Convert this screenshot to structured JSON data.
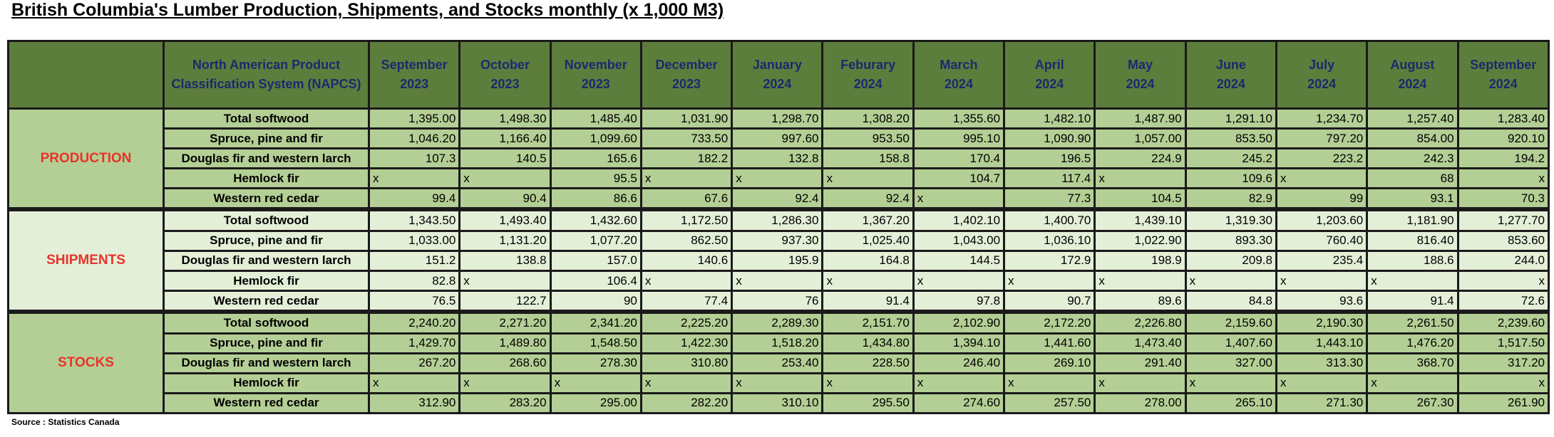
{
  "title": "British Columbia's Lumber Production, Shipments, and Stocks monthly (x 1,000 M3)",
  "header": {
    "napcs": "North American Product Classification System (NAPCS)",
    "months": [
      [
        "September",
        "2023"
      ],
      [
        "October",
        "2023"
      ],
      [
        "November",
        "2023"
      ],
      [
        "December",
        "2023"
      ],
      [
        "January",
        "2024"
      ],
      [
        "Feburary",
        "2024"
      ],
      [
        "March",
        "2024"
      ],
      [
        "April",
        "2024"
      ],
      [
        "May",
        "2024"
      ],
      [
        "June",
        "2024"
      ],
      [
        "July",
        "2024"
      ],
      [
        "August",
        "2024"
      ],
      [
        "September",
        "2024"
      ]
    ]
  },
  "sections": [
    {
      "name": "PRODUCTION",
      "rows": [
        {
          "label": "Total softwood",
          "values": [
            "1,395.00",
            "1,498.30",
            "1,485.40",
            "1,031.90",
            "1,298.70",
            "1,308.20",
            "1,355.60",
            "1,482.10",
            "1,487.90",
            "1,291.10",
            "1,234.70",
            "1,257.40",
            "1,283.40"
          ]
        },
        {
          "label": "Spruce, pine and fir",
          "values": [
            "1,046.20",
            "1,166.40",
            "1,099.60",
            "733.50",
            "997.60",
            "953.50",
            "995.10",
            "1,090.90",
            "1,057.00",
            "853.50",
            "797.20",
            "854.00",
            "920.10"
          ]
        },
        {
          "label": "Douglas fir and western larch",
          "values": [
            "107.3",
            "140.5",
            "165.6",
            "182.2",
            "132.8",
            "158.8",
            "170.4",
            "196.5",
            "224.9",
            "245.2",
            "223.2",
            "242.3",
            "194.2"
          ]
        },
        {
          "label": "Hemlock fir",
          "values": [
            "x",
            "x",
            "95.5",
            "x",
            "x",
            "x",
            "104.7",
            "117.4",
            "x",
            "109.6",
            "x",
            "68",
            "x"
          ]
        },
        {
          "label": "Western red cedar",
          "values": [
            "99.4",
            "90.4",
            "86.6",
            "67.6",
            "92.4",
            "92.4",
            "x",
            "77.3",
            "104.5",
            "82.9",
            "99",
            "93.1",
            "70.3"
          ]
        }
      ]
    },
    {
      "name": "SHIPMENTS",
      "rows": [
        {
          "label": "Total softwood",
          "values": [
            "1,343.50",
            "1,493.40",
            "1,432.60",
            "1,172.50",
            "1,286.30",
            "1,367.20",
            "1,402.10",
            "1,400.70",
            "1,439.10",
            "1,319.30",
            "1,203.60",
            "1,181.90",
            "1,277.70"
          ]
        },
        {
          "label": "Spruce, pine and fir",
          "values": [
            "1,033.00",
            "1,131.20",
            "1,077.20",
            "862.50",
            "937.30",
            "1,025.40",
            "1,043.00",
            "1,036.10",
            "1,022.90",
            "893.30",
            "760.40",
            "816.40",
            "853.60"
          ]
        },
        {
          "label": "Douglas fir and western larch",
          "values": [
            "151.2",
            "138.8",
            "157.0",
            "140.6",
            "195.9",
            "164.8",
            "144.5",
            "172.9",
            "198.9",
            "209.8",
            "235.4",
            "188.6",
            "244.0"
          ]
        },
        {
          "label": "Hemlock fir",
          "values": [
            "82.8",
            "x",
            "106.4",
            "x",
            "x",
            "x",
            "x",
            "x",
            "x",
            "x",
            "x",
            "x",
            "x"
          ]
        },
        {
          "label": "Western red cedar",
          "values": [
            "76.5",
            "122.7",
            "90",
            "77.4",
            "76",
            "91.4",
            "97.8",
            "90.7",
            "89.6",
            "84.8",
            "93.6",
            "91.4",
            "72.6"
          ]
        }
      ]
    },
    {
      "name": "STOCKS",
      "rows": [
        {
          "label": "Total softwood",
          "values": [
            "2,240.20",
            "2,271.20",
            "2,341.20",
            "2,225.20",
            "2,289.30",
            "2,151.70",
            "2,102.90",
            "2,172.20",
            "2,226.80",
            "2,159.60",
            "2,190.30",
            "2,261.50",
            "2,239.60"
          ]
        },
        {
          "label": "Spruce, pine and fir",
          "values": [
            "1,429.70",
            "1,489.80",
            "1,548.50",
            "1,422.30",
            "1,518.20",
            "1,434.80",
            "1,394.10",
            "1,441.60",
            "1,473.40",
            "1,407.60",
            "1,443.10",
            "1,476.20",
            "1,517.50"
          ]
        },
        {
          "label": "Douglas fir and western larch",
          "values": [
            "267.20",
            "268.60",
            "278.30",
            "310.80",
            "253.40",
            "228.50",
            "246.40",
            "269.10",
            "291.40",
            "327.00",
            "313.30",
            "368.70",
            "317.20"
          ]
        },
        {
          "label": "Hemlock fir",
          "values": [
            "x",
            "x",
            "x",
            "x",
            "x",
            "x",
            "x",
            "x",
            "x",
            "x",
            "x",
            "x",
            "x"
          ]
        },
        {
          "label": "Western red cedar",
          "values": [
            "312.90",
            "283.20",
            "295.00",
            "282.20",
            "310.10",
            "295.50",
            "274.60",
            "257.50",
            "278.00",
            "265.10",
            "271.30",
            "267.30",
            "261.90"
          ]
        }
      ]
    }
  ],
  "source": "Source : Statistics Canada",
  "colors": {
    "header_green": "#5d7d3d",
    "header_text": "#1a2a6e",
    "band_light_green": "#b4cf95",
    "band_pale_green": "#e4efd8",
    "section_red": "#e8332a"
  }
}
